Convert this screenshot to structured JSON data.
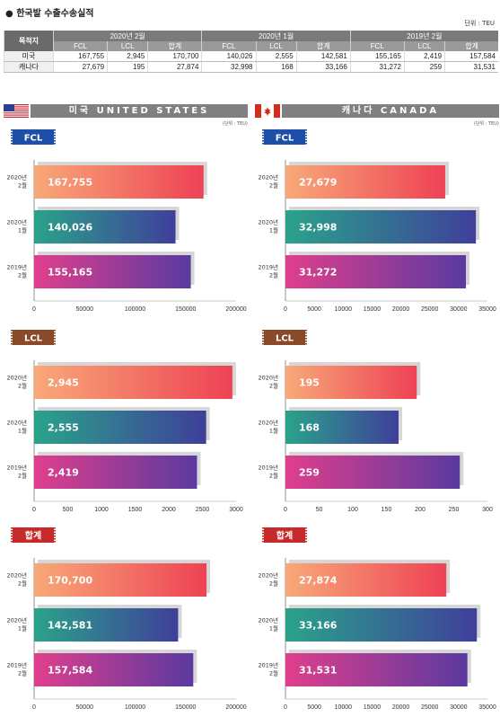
{
  "title": "● 한국발 수출수송실적",
  "unit": "단위 : TEU",
  "summary_table": {
    "dest_header": "목적지",
    "groups": [
      "2020년 2월",
      "2020년 1월",
      "2019년 2월"
    ],
    "sub_headers": [
      "FCL",
      "LCL",
      "합계"
    ],
    "rows": [
      {
        "dest": "미국",
        "values": [
          "167,755",
          "2,945",
          "170,700",
          "140,026",
          "2,555",
          "142,581",
          "155,165",
          "2,419",
          "157,584"
        ]
      },
      {
        "dest": "캐나다",
        "values": [
          "27,679",
          "195",
          "27,874",
          "32,998",
          "168",
          "33,166",
          "31,272",
          "259",
          "31,531"
        ]
      }
    ]
  },
  "countries": [
    {
      "label": "미국 UNITED STATES",
      "unit": "(단위 : TEU)",
      "flag": "us-flag-icon"
    },
    {
      "label": "캐나다 CANADA",
      "unit": "(단위 : TEU)",
      "flag": "canada-flag-icon"
    }
  ],
  "colors": {
    "row1": [
      "#f8a978",
      "#ee4255"
    ],
    "row2": [
      "#2aa38a",
      "#3f3f9a"
    ],
    "row3": [
      "#e03e8c",
      "#5a3aa0"
    ],
    "badge_blue": "#1e4fa8",
    "badge_brown": "#8a4a2a",
    "badge_red": "#c72a2a",
    "banner_gray": "#808080"
  },
  "chart_data": [
    {
      "type": "bar",
      "country": "미국",
      "section": "FCL",
      "categories": [
        "2020년 2월",
        "2020년 1월",
        "2019년 2월"
      ],
      "values": [
        167755,
        140026,
        155165
      ],
      "labels": [
        "167,755",
        "140,026",
        "155,165"
      ],
      "xticks": [
        0,
        50000,
        100000,
        150000,
        200000
      ],
      "xlim": [
        0,
        200000
      ]
    },
    {
      "type": "bar",
      "country": "캐나다",
      "section": "FCL",
      "categories": [
        "2020년 2월",
        "2020년 1월",
        "2019년 2월"
      ],
      "values": [
        27679,
        32998,
        31272
      ],
      "labels": [
        "27,679",
        "32,998",
        "31,272"
      ],
      "xticks": [
        0,
        5000,
        10000,
        15000,
        20000,
        25000,
        30000,
        35000
      ],
      "xlim": [
        0,
        35000
      ]
    },
    {
      "type": "bar",
      "country": "미국",
      "section": "LCL",
      "categories": [
        "2020년 2월",
        "2020년 1월",
        "2019년 2월"
      ],
      "values": [
        2945,
        2555,
        2419
      ],
      "labels": [
        "2,945",
        "2,555",
        "2,419"
      ],
      "xticks": [
        0,
        500,
        1000,
        1500,
        2000,
        2500,
        3000
      ],
      "xlim": [
        0,
        3000
      ]
    },
    {
      "type": "bar",
      "country": "캐나다",
      "section": "LCL",
      "categories": [
        "2020년 2월",
        "2020년 1월",
        "2019년 2월"
      ],
      "values": [
        195,
        168,
        259
      ],
      "labels": [
        "195",
        "168",
        "259"
      ],
      "xticks": [
        0,
        50,
        100,
        150,
        200,
        250,
        300
      ],
      "xlim": [
        0,
        300
      ]
    },
    {
      "type": "bar",
      "country": "미국",
      "section": "합계",
      "categories": [
        "2020년 2월",
        "2020년 1월",
        "2019년 2월"
      ],
      "values": [
        170700,
        142581,
        157584
      ],
      "labels": [
        "170,700",
        "142,581",
        "157,584"
      ],
      "xticks": [
        0,
        50000,
        100000,
        150000,
        200000
      ],
      "xlim": [
        0,
        200000
      ]
    },
    {
      "type": "bar",
      "country": "캐나다",
      "section": "합계",
      "categories": [
        "2020년 2월",
        "2020년 1월",
        "2019년 2월"
      ],
      "values": [
        27874,
        33166,
        31531
      ],
      "labels": [
        "27,874",
        "33,166",
        "31,531"
      ],
      "xticks": [
        0,
        5000,
        10000,
        15000,
        20000,
        25000,
        30000,
        35000
      ],
      "xlim": [
        0,
        35000
      ]
    }
  ]
}
